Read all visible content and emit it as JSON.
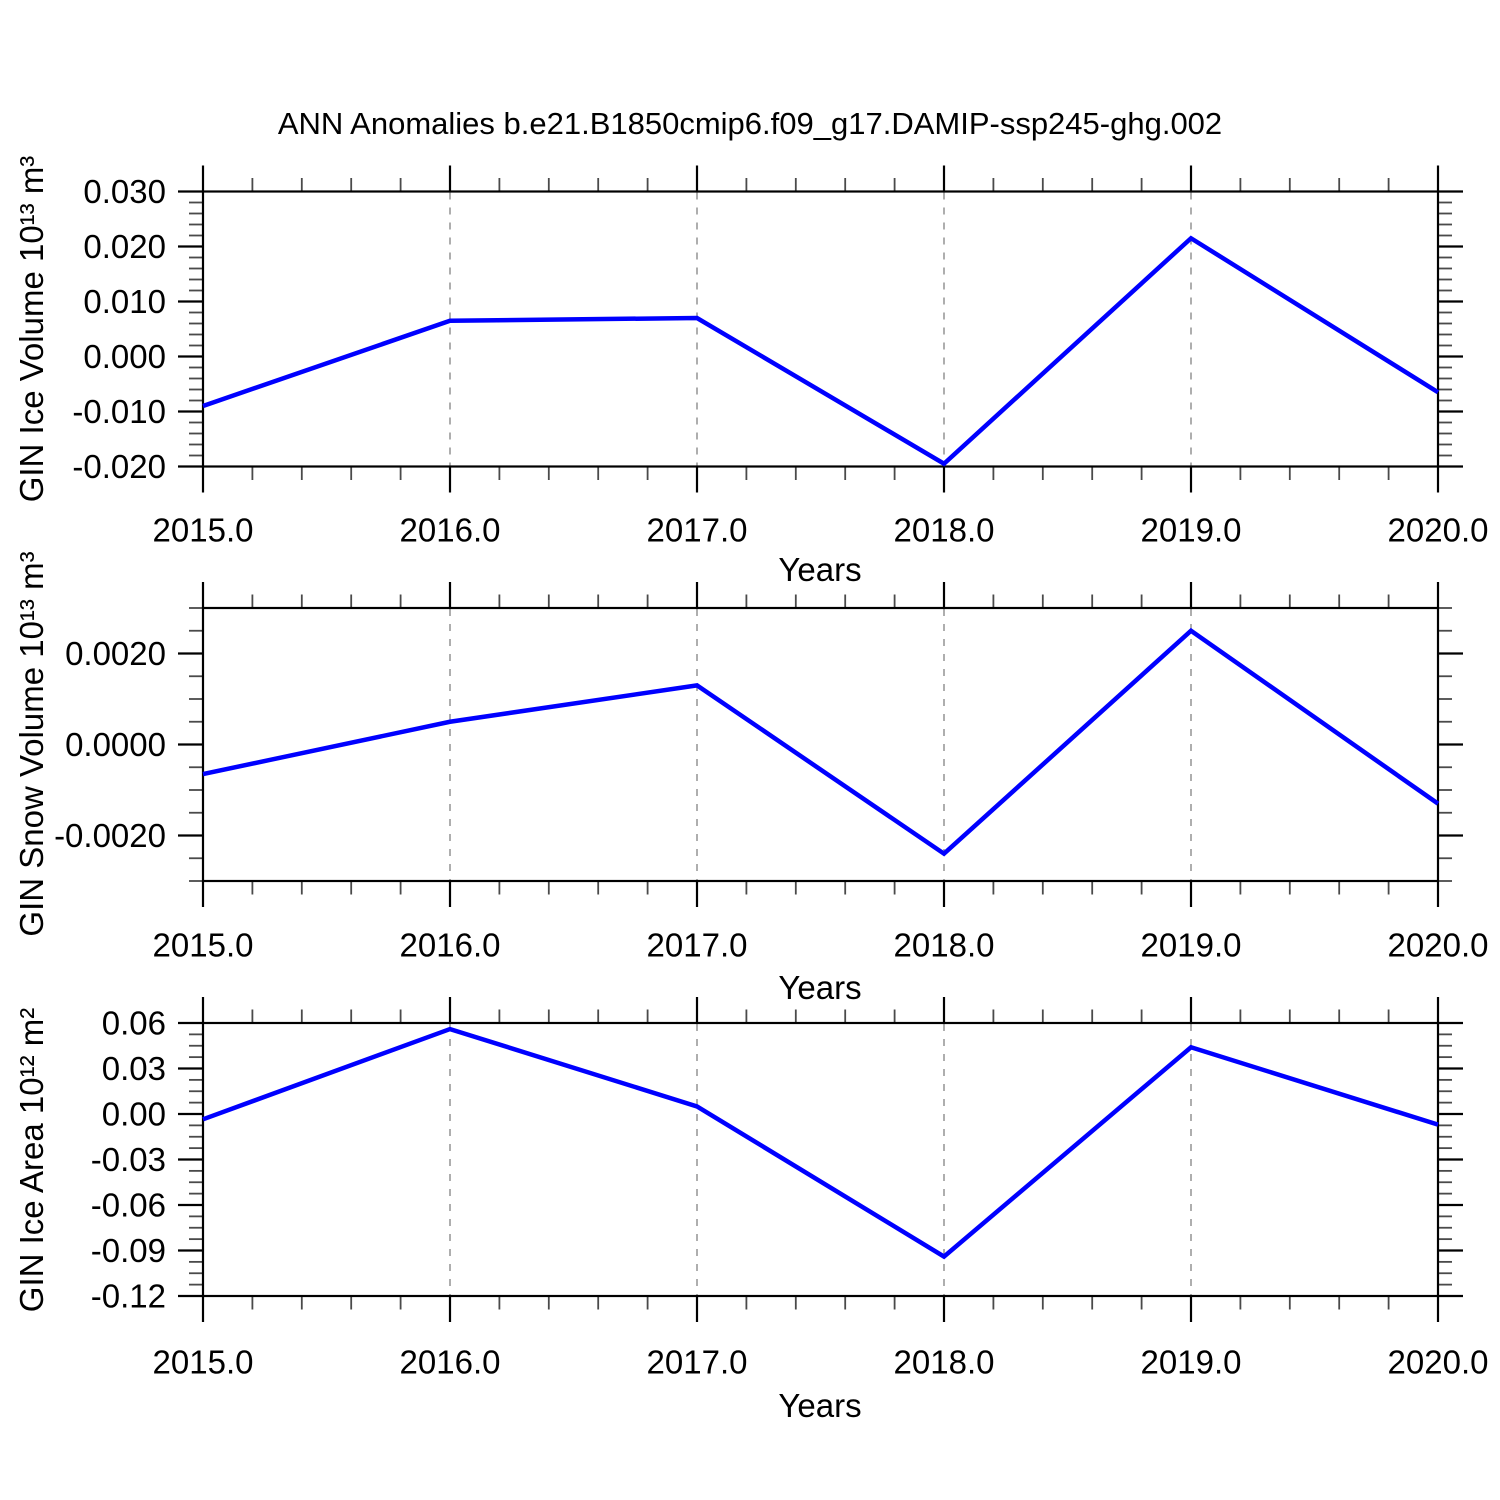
{
  "title": "ANN Anomalies b.e21.B1850cmip6.f09_g17.DAMIP-ssp245-ghg.002",
  "line_color": "#0000ff",
  "grid_color": "#9a9a9a",
  "frame_color": "#000000",
  "chart_data": [
    {
      "type": "line",
      "name": "gin-ice-volume",
      "ylabel": "GIN Ice Volume 10¹³ m³",
      "xlabel": "Years",
      "x": [
        2015,
        2016,
        2017,
        2018,
        2019,
        2020
      ],
      "values": [
        -0.009,
        0.0065,
        0.007,
        -0.0195,
        0.0215,
        -0.0065
      ],
      "ylim": [
        -0.02,
        0.03
      ],
      "ytick_values": [
        0.03,
        0.02,
        0.01,
        0.0,
        -0.01,
        -0.02
      ],
      "ytick_labels": [
        "0.030",
        "0.020",
        "0.010",
        "0.000",
        "-0.010",
        "-0.020"
      ],
      "yminor_step": 0.002,
      "xtick_labels": [
        "2015.0",
        "2016.0",
        "2017.0",
        "2018.0",
        "2019.0",
        "2020.0"
      ],
      "xminor_step": 0.2,
      "grid": "vertical-dashed",
      "line_color": "#0000ff"
    },
    {
      "type": "line",
      "name": "gin-snow-volume",
      "ylabel": "GIN Snow Volume 10¹³ m³",
      "xlabel": "Years",
      "x": [
        2015,
        2016,
        2017,
        2018,
        2019,
        2020
      ],
      "values": [
        -0.00065,
        0.0005,
        0.0013,
        -0.0024,
        0.0025,
        -0.0013
      ],
      "ylim": [
        -0.003,
        0.003
      ],
      "ytick_values": [
        0.002,
        0.0,
        -0.002
      ],
      "ytick_labels": [
        "0.0020",
        "0.0000",
        "-0.0020"
      ],
      "yminor_step": 0.0005,
      "xtick_labels": [
        "2015.0",
        "2016.0",
        "2017.0",
        "2018.0",
        "2019.0",
        "2020.0"
      ],
      "xminor_step": 0.2,
      "grid": "vertical-dashed",
      "line_color": "#0000ff"
    },
    {
      "type": "line",
      "name": "gin-ice-area",
      "ylabel": "GIN Ice Area 10¹² m²",
      "xlabel": "Years",
      "x": [
        2015,
        2016,
        2017,
        2018,
        2019,
        2020
      ],
      "values": [
        -0.0035,
        0.056,
        0.005,
        -0.094,
        0.044,
        -0.007
      ],
      "ylim": [
        -0.12,
        0.06
      ],
      "ytick_values": [
        0.06,
        0.03,
        0.0,
        -0.03,
        -0.06,
        -0.09,
        -0.12
      ],
      "ytick_labels": [
        "0.06",
        "0.03",
        "0.00",
        "-0.03",
        "-0.06",
        "-0.09",
        "-0.12"
      ],
      "yminor_step": 0.0075,
      "xtick_labels": [
        "2015.0",
        "2016.0",
        "2017.0",
        "2018.0",
        "2019.0",
        "2020.0"
      ],
      "xminor_step": 0.2,
      "grid": "vertical-dashed",
      "line_color": "#0000ff"
    }
  ]
}
